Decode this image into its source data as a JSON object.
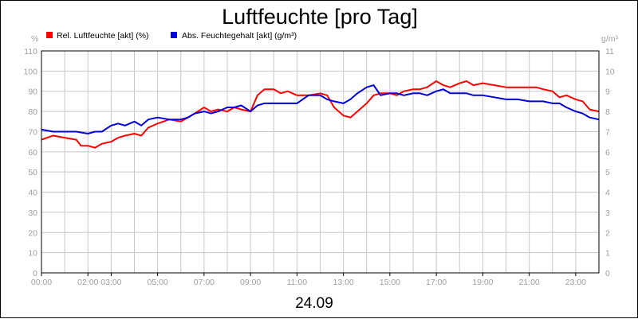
{
  "chart_data": {
    "type": "line",
    "title": "Luftfeuchte [pro Tag]",
    "date_label": "24.09",
    "y_unit_left": "%",
    "y_unit_right": "g/m³",
    "ylim_left": [
      0,
      110
    ],
    "ylim_right": [
      0,
      11
    ],
    "yticks_left": [
      "0",
      "10",
      "20",
      "30",
      "40",
      "50",
      "60",
      "70",
      "80",
      "90",
      "100",
      "110"
    ],
    "yticks_right": [
      "0",
      "1",
      "2",
      "3",
      "4",
      "5",
      "6",
      "7",
      "8",
      "9",
      "10",
      "11"
    ],
    "xlim": [
      0,
      24
    ],
    "xticks": [
      {
        "x": 0,
        "label": "00:00"
      },
      {
        "x": 2,
        "label": "02:00"
      },
      {
        "x": 3,
        "label": "03:00"
      },
      {
        "x": 5,
        "label": "05:00"
      },
      {
        "x": 7,
        "label": "07:00"
      },
      {
        "x": 9,
        "label": "09:00"
      },
      {
        "x": 11,
        "label": "11:00"
      },
      {
        "x": 13,
        "label": "13:00"
      },
      {
        "x": 15,
        "label": "15:00"
      },
      {
        "x": 17,
        "label": "17:00"
      },
      {
        "x": 19,
        "label": "19:00"
      },
      {
        "x": 21,
        "label": "21:00"
      },
      {
        "x": 23,
        "label": "23:00"
      }
    ],
    "grid": true,
    "legend_position": "top-left",
    "series": [
      {
        "name": "Rel. Luftfeuchte [akt] (%)",
        "axis": "left",
        "color": "#ff0000",
        "x": [
          0,
          0.5,
          1,
          1.5,
          1.7,
          2,
          2.3,
          2.6,
          3,
          3.3,
          3.6,
          4,
          4.3,
          4.6,
          5,
          5.5,
          6,
          6.3,
          6.6,
          7,
          7.3,
          7.6,
          8,
          8.3,
          8.6,
          9,
          9.3,
          9.6,
          10,
          10.3,
          10.6,
          11,
          11.5,
          12,
          12.3,
          12.6,
          13,
          13.3,
          13.6,
          14,
          14.3,
          14.6,
          15,
          15.3,
          15.6,
          16,
          16.3,
          16.6,
          17,
          17.3,
          17.6,
          18,
          18.3,
          18.6,
          19,
          19.5,
          20,
          20.5,
          21,
          21.3,
          21.6,
          22,
          22.3,
          22.6,
          23,
          23.3,
          23.6,
          24
        ],
        "y": [
          66,
          68,
          67,
          66,
          63,
          63,
          62,
          64,
          65,
          67,
          68,
          69,
          68,
          72,
          74,
          76,
          75,
          77,
          79,
          82,
          80,
          81,
          80,
          82,
          81,
          80,
          88,
          91,
          91,
          89,
          90,
          88,
          88,
          89,
          88,
          82,
          78,
          77,
          80,
          84,
          88,
          89,
          89,
          88,
          90,
          91,
          91,
          92,
          95,
          93,
          92,
          94,
          95,
          93,
          94,
          93,
          92,
          92,
          92,
          92,
          91,
          90,
          87,
          88,
          86,
          85,
          81,
          80
        ]
      },
      {
        "name": "Abs. Feuchtegehalt [akt] (g/m³)",
        "axis": "right",
        "color": "#0000dd",
        "x": [
          0,
          0.5,
          1,
          1.5,
          2,
          2.3,
          2.6,
          3,
          3.3,
          3.6,
          4,
          4.3,
          4.6,
          5,
          5.5,
          6,
          6.3,
          6.6,
          7,
          7.3,
          7.6,
          8,
          8.3,
          8.6,
          9,
          9.3,
          9.6,
          10,
          10.3,
          10.6,
          11,
          11.5,
          12,
          12.3,
          12.6,
          13,
          13.3,
          13.6,
          14,
          14.3,
          14.6,
          15,
          15.3,
          15.6,
          16,
          16.3,
          16.6,
          17,
          17.3,
          17.6,
          18,
          18.3,
          18.6,
          19,
          19.5,
          20,
          20.5,
          21,
          21.3,
          21.6,
          22,
          22.3,
          22.6,
          23,
          23.3,
          23.6,
          24
        ],
        "y": [
          7.1,
          7.0,
          7.0,
          7.0,
          6.9,
          7.0,
          7.0,
          7.3,
          7.4,
          7.3,
          7.5,
          7.3,
          7.6,
          7.7,
          7.6,
          7.6,
          7.7,
          7.9,
          8.0,
          7.9,
          8.0,
          8.2,
          8.2,
          8.3,
          8.0,
          8.3,
          8.4,
          8.4,
          8.4,
          8.4,
          8.4,
          8.8,
          8.8,
          8.6,
          8.5,
          8.4,
          8.6,
          8.9,
          9.2,
          9.3,
          8.8,
          8.9,
          8.9,
          8.8,
          8.9,
          8.9,
          8.8,
          9.0,
          9.1,
          8.9,
          8.9,
          8.9,
          8.8,
          8.8,
          8.7,
          8.6,
          8.6,
          8.5,
          8.5,
          8.5,
          8.4,
          8.4,
          8.2,
          8.0,
          7.9,
          7.7,
          7.6
        ]
      }
    ]
  }
}
